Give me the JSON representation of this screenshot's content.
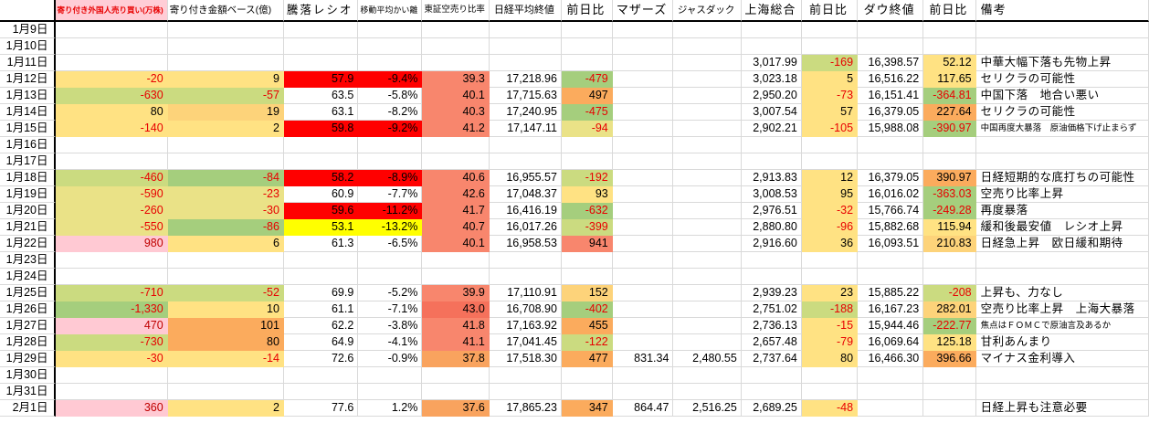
{
  "palette": {
    "y": "#FFE283",
    "y2": "#EAE287",
    "yg": "#CBDB80",
    "g": "#A5CE7D",
    "o": "#FBAB5D",
    "oy": "#FDD37A",
    "s": "#F8866D",
    "s2": "#F5715B",
    "so": "#F9A35E",
    "p": "#FFC9D3",
    "r": "#FF0000",
    "by": "#FFFF00"
  },
  "text_colors": {
    "r": "#E80000",
    "dr": "#C00000",
    "k": "#000000"
  },
  "columns": [
    {
      "label": ""
    },
    {
      "label": "寄り付き外国人売り買い(万株)"
    },
    {
      "label": "寄り付き金額ベース(億)"
    },
    {
      "label": "騰落レシオ"
    },
    {
      "label": "移動平均かい離"
    },
    {
      "label": "東証空売り比率"
    },
    {
      "label": "日経平均終値"
    },
    {
      "label": "前日比"
    },
    {
      "label": "マザーズ"
    },
    {
      "label": "ジャスダック"
    },
    {
      "label": "上海総合"
    },
    {
      "label": "前日比"
    },
    {
      "label": "ダウ終値"
    },
    {
      "label": "前日比"
    },
    {
      "label": "備考"
    }
  ],
  "rows": [
    {
      "date": "1月9日",
      "cells": []
    },
    {
      "date": "1月10日",
      "cells": []
    },
    {
      "date": "1月11日",
      "cells": [
        null,
        null,
        null,
        null,
        null,
        null,
        null,
        null,
        null,
        {
          "v": "3,017.99"
        },
        {
          "v": "-169",
          "bg": "yg",
          "c": "r"
        },
        {
          "v": "16,398.57"
        },
        {
          "v": "52.12",
          "bg": "y"
        },
        {
          "v": "中華大幅下落も先物上昇"
        }
      ]
    },
    {
      "date": "1月12日",
      "cells": [
        {
          "v": "-20",
          "bg": "y",
          "c": "r"
        },
        {
          "v": "9",
          "bg": "y"
        },
        {
          "v": "57.9",
          "bg": "r"
        },
        {
          "v": "-9.4%",
          "bg": "r"
        },
        {
          "v": "39.3",
          "bg": "s"
        },
        {
          "v": "17,218.96"
        },
        {
          "v": "-479",
          "bg": "g",
          "c": "r"
        },
        null,
        null,
        {
          "v": "3,023.18"
        },
        {
          "v": "5",
          "bg": "y"
        },
        {
          "v": "16,516.22"
        },
        {
          "v": "117.65",
          "bg": "y"
        },
        {
          "v": "セリクラの可能性"
        }
      ]
    },
    {
      "date": "1月13日",
      "cells": [
        {
          "v": "-630",
          "bg": "yg",
          "c": "r"
        },
        {
          "v": "-57",
          "bg": "yg",
          "c": "r"
        },
        {
          "v": "63.5"
        },
        {
          "v": "-5.8%"
        },
        {
          "v": "40.1",
          "bg": "s"
        },
        {
          "v": "17,715.63"
        },
        {
          "v": "497",
          "bg": "o"
        },
        null,
        null,
        {
          "v": "2,950.20"
        },
        {
          "v": "-73",
          "bg": "y",
          "c": "r"
        },
        {
          "v": "16,151.41"
        },
        {
          "v": "-364.81",
          "bg": "g",
          "c": "r"
        },
        {
          "v": "中国下落　地合い悪い"
        }
      ]
    },
    {
      "date": "1月14日",
      "cells": [
        {
          "v": "80",
          "bg": "y"
        },
        {
          "v": "19",
          "bg": "oy"
        },
        {
          "v": "63.1"
        },
        {
          "v": "-8.2%"
        },
        {
          "v": "40.3",
          "bg": "s"
        },
        {
          "v": "17,240.95"
        },
        {
          "v": "-475",
          "bg": "g",
          "c": "r"
        },
        null,
        null,
        {
          "v": "3,007.54"
        },
        {
          "v": "57",
          "bg": "y"
        },
        {
          "v": "16,379.05"
        },
        {
          "v": "227.64",
          "bg": "o"
        },
        {
          "v": "セリクラの可能性"
        }
      ]
    },
    {
      "date": "1月15日",
      "cells": [
        {
          "v": "-140",
          "bg": "y",
          "c": "r"
        },
        {
          "v": "2",
          "bg": "y"
        },
        {
          "v": "59.8",
          "bg": "r"
        },
        {
          "v": "-9.2%",
          "bg": "r"
        },
        {
          "v": "41.2",
          "bg": "s"
        },
        {
          "v": "17,147.11"
        },
        {
          "v": "-94",
          "bg": "y2",
          "c": "r"
        },
        null,
        null,
        {
          "v": "2,902.21"
        },
        {
          "v": "-105",
          "bg": "y",
          "c": "r"
        },
        {
          "v": "15,988.08"
        },
        {
          "v": "-390.97",
          "bg": "g",
          "c": "r"
        },
        {
          "v": "中国再度大暴落　原油価格下げ止まらず",
          "sz": "s"
        }
      ]
    },
    {
      "date": "1月16日",
      "cells": []
    },
    {
      "date": "1月17日",
      "cells": []
    },
    {
      "date": "1月18日",
      "cells": [
        {
          "v": "-460",
          "bg": "yg",
          "c": "r"
        },
        {
          "v": "-84",
          "bg": "g",
          "c": "r"
        },
        {
          "v": "58.2",
          "bg": "r"
        },
        {
          "v": "-8.9%",
          "bg": "r"
        },
        {
          "v": "40.6",
          "bg": "s"
        },
        {
          "v": "16,955.57"
        },
        {
          "v": "-192",
          "bg": "yg",
          "c": "r"
        },
        null,
        null,
        {
          "v": "2,913.83"
        },
        {
          "v": "12",
          "bg": "y"
        },
        {
          "v": "16,379.05"
        },
        {
          "v": "390.97",
          "bg": "o"
        },
        {
          "v": "日経短期的な底打ちの可能性"
        }
      ]
    },
    {
      "date": "1月19日",
      "cells": [
        {
          "v": "-590",
          "bg": "y2",
          "c": "r"
        },
        {
          "v": "-23",
          "bg": "y2",
          "c": "r"
        },
        {
          "v": "60.9"
        },
        {
          "v": "-7.7%"
        },
        {
          "v": "42.6",
          "bg": "s"
        },
        {
          "v": "17,048.37"
        },
        {
          "v": "93",
          "bg": "y"
        },
        null,
        null,
        {
          "v": "3,008.53"
        },
        {
          "v": "95",
          "bg": "y"
        },
        {
          "v": "16,016.02"
        },
        {
          "v": "-363.03",
          "bg": "g",
          "c": "r"
        },
        {
          "v": "空売り比率上昇"
        }
      ]
    },
    {
      "date": "1月20日",
      "cells": [
        {
          "v": "-260",
          "bg": "y2",
          "c": "r"
        },
        {
          "v": "-30",
          "bg": "y2",
          "c": "r"
        },
        {
          "v": "59.6",
          "bg": "r"
        },
        {
          "v": "-11.2%",
          "bg": "r"
        },
        {
          "v": "41.7",
          "bg": "s"
        },
        {
          "v": "16,416.19"
        },
        {
          "v": "-632",
          "bg": "g",
          "c": "r"
        },
        null,
        null,
        {
          "v": "2,976.51"
        },
        {
          "v": "-32",
          "bg": "y",
          "c": "r"
        },
        {
          "v": "15,766.74"
        },
        {
          "v": "-249.28",
          "bg": "g",
          "c": "r"
        },
        {
          "v": "再度暴落"
        }
      ]
    },
    {
      "date": "1月21日",
      "cells": [
        {
          "v": "-550",
          "bg": "y2",
          "c": "r"
        },
        {
          "v": "-86",
          "bg": "g",
          "c": "r"
        },
        {
          "v": "53.1",
          "bg": "by"
        },
        {
          "v": "-13.2%",
          "bg": "by"
        },
        {
          "v": "40.7",
          "bg": "s"
        },
        {
          "v": "16,017.26"
        },
        {
          "v": "-399",
          "bg": "yg",
          "c": "r"
        },
        null,
        null,
        {
          "v": "2,880.80"
        },
        {
          "v": "-96",
          "bg": "y",
          "c": "r"
        },
        {
          "v": "15,882.68"
        },
        {
          "v": "115.94",
          "bg": "y"
        },
        {
          "v": "緩和後最安値　レシオ上昇"
        }
      ]
    },
    {
      "date": "1月22日",
      "cells": [
        {
          "v": "980",
          "bg": "p",
          "c": "dr"
        },
        {
          "v": "6",
          "bg": "y"
        },
        {
          "v": "61.3"
        },
        {
          "v": "-6.5%"
        },
        {
          "v": "40.1",
          "bg": "s"
        },
        {
          "v": "16,958.53"
        },
        {
          "v": "941",
          "bg": "s"
        },
        null,
        null,
        {
          "v": "2,916.60"
        },
        {
          "v": "36",
          "bg": "y"
        },
        {
          "v": "16,093.51"
        },
        {
          "v": "210.83",
          "bg": "oy"
        },
        {
          "v": "日経急上昇　欧日緩和期待"
        }
      ]
    },
    {
      "date": "1月23日",
      "cells": []
    },
    {
      "date": "1月24日",
      "cells": []
    },
    {
      "date": "1月25日",
      "cells": [
        {
          "v": "-710",
          "bg": "yg",
          "c": "r"
        },
        {
          "v": "-52",
          "bg": "yg",
          "c": "r"
        },
        {
          "v": "69.9"
        },
        {
          "v": "-5.2%"
        },
        {
          "v": "39.9",
          "bg": "s"
        },
        {
          "v": "17,110.91"
        },
        {
          "v": "152",
          "bg": "oy"
        },
        null,
        null,
        {
          "v": "2,939.23"
        },
        {
          "v": "23",
          "bg": "y"
        },
        {
          "v": "15,885.22"
        },
        {
          "v": "-208",
          "bg": "yg",
          "c": "r"
        },
        {
          "v": "上昇も、力なし"
        }
      ]
    },
    {
      "date": "1月26日",
      "cells": [
        {
          "v": "-1,330",
          "bg": "g",
          "c": "r"
        },
        {
          "v": "10",
          "bg": "y"
        },
        {
          "v": "61.1"
        },
        {
          "v": "-7.1%"
        },
        {
          "v": "43.0",
          "bg": "s2"
        },
        {
          "v": "16,708.90"
        },
        {
          "v": "-402",
          "bg": "g",
          "c": "r"
        },
        null,
        null,
        {
          "v": "2,751.02"
        },
        {
          "v": "-188",
          "bg": "yg",
          "c": "r"
        },
        {
          "v": "16,167.23"
        },
        {
          "v": "282.01",
          "bg": "oy"
        },
        {
          "v": "空売り比率上昇　上海大暴落"
        }
      ]
    },
    {
      "date": "1月27日",
      "cells": [
        {
          "v": "470",
          "bg": "p",
          "c": "dr"
        },
        {
          "v": "101",
          "bg": "o"
        },
        {
          "v": "62.2"
        },
        {
          "v": "-3.8%"
        },
        {
          "v": "41.8",
          "bg": "s"
        },
        {
          "v": "17,163.92"
        },
        {
          "v": "455",
          "bg": "o"
        },
        null,
        null,
        {
          "v": "2,736.13"
        },
        {
          "v": "-15",
          "bg": "y",
          "c": "r"
        },
        {
          "v": "15,944.46"
        },
        {
          "v": "-222.77",
          "bg": "g",
          "c": "r"
        },
        {
          "v": "焦点はＦＯＭＣで原油言及あるか",
          "sz": "s"
        }
      ]
    },
    {
      "date": "1月28日",
      "cells": [
        {
          "v": "-730",
          "bg": "yg",
          "c": "r"
        },
        {
          "v": "80",
          "bg": "o"
        },
        {
          "v": "64.9"
        },
        {
          "v": "-4.1%"
        },
        {
          "v": "41.1",
          "bg": "s"
        },
        {
          "v": "17,041.45"
        },
        {
          "v": "-122",
          "bg": "yg",
          "c": "r"
        },
        null,
        null,
        {
          "v": "2,657.48"
        },
        {
          "v": "-79",
          "bg": "y",
          "c": "r"
        },
        {
          "v": "16,069.64"
        },
        {
          "v": "125.18",
          "bg": "y"
        },
        {
          "v": "甘利あんまり"
        }
      ]
    },
    {
      "date": "1月29日",
      "cells": [
        {
          "v": "-30",
          "bg": "y",
          "c": "r"
        },
        {
          "v": "-14",
          "bg": "y",
          "c": "r"
        },
        {
          "v": "72.6"
        },
        {
          "v": "-0.9%"
        },
        {
          "v": "37.8",
          "bg": "so"
        },
        {
          "v": "17,518.30"
        },
        {
          "v": "477",
          "bg": "o"
        },
        {
          "v": "831.34"
        },
        {
          "v": "2,480.55"
        },
        {
          "v": "2,737.64"
        },
        {
          "v": "80",
          "bg": "y"
        },
        {
          "v": "16,466.30"
        },
        {
          "v": "396.66",
          "bg": "o"
        },
        {
          "v": "マイナス金利導入"
        }
      ]
    },
    {
      "date": "1月30日",
      "cells": []
    },
    {
      "date": "1月31日",
      "cells": []
    },
    {
      "date": "2月1日",
      "cells": [
        {
          "v": "360",
          "bg": "p",
          "c": "dr"
        },
        {
          "v": "2",
          "bg": "y"
        },
        {
          "v": "77.6"
        },
        {
          "v": "1.2%"
        },
        {
          "v": "37.6",
          "bg": "so"
        },
        {
          "v": "17,865.23"
        },
        {
          "v": "347",
          "bg": "o"
        },
        {
          "v": "864.47"
        },
        {
          "v": "2,516.25"
        },
        {
          "v": "2,689.25"
        },
        {
          "v": "-48",
          "bg": "y",
          "c": "r"
        },
        null,
        null,
        {
          "v": "日経上昇も注意必要"
        }
      ]
    }
  ]
}
